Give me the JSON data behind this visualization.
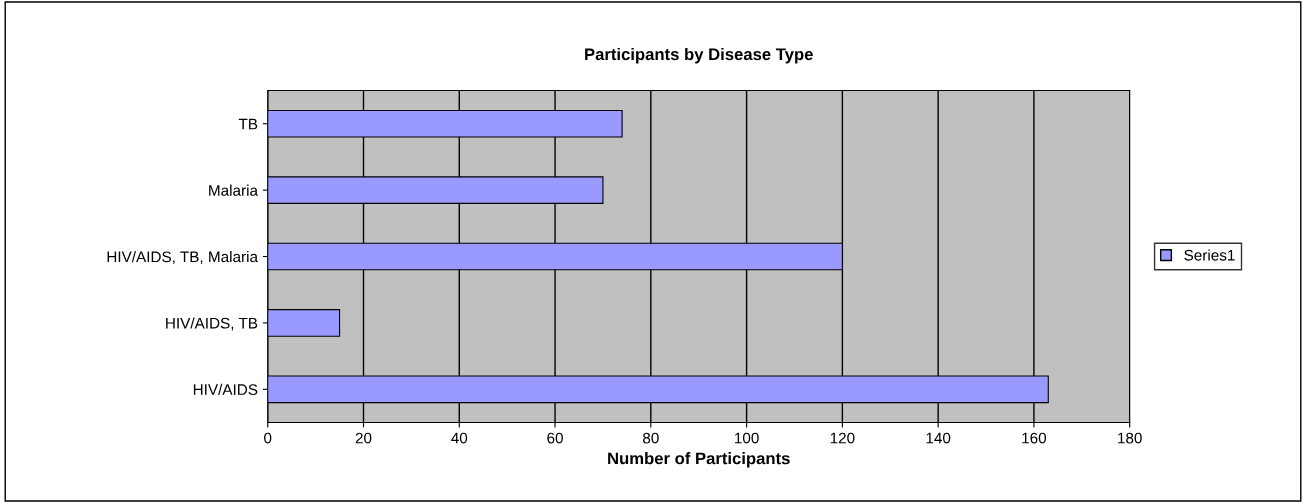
{
  "chart_data": {
    "type": "bar",
    "orientation": "horizontal",
    "title": "Participants by Disease Type",
    "xlabel": "Number of Participants",
    "categories": [
      "TB",
      "Malaria",
      "HIV/AIDS, TB, Malaria",
      "HIV/AIDS, TB",
      "HIV/AIDS"
    ],
    "series": [
      {
        "name": "Series1",
        "color": "#9999ff",
        "values": [
          74,
          70,
          120,
          15,
          163
        ]
      }
    ],
    "xlim": [
      0,
      180
    ],
    "xticks": [
      0,
      20,
      40,
      60,
      80,
      100,
      120,
      140,
      160,
      180
    ],
    "grid": "x",
    "legend": "right"
  }
}
